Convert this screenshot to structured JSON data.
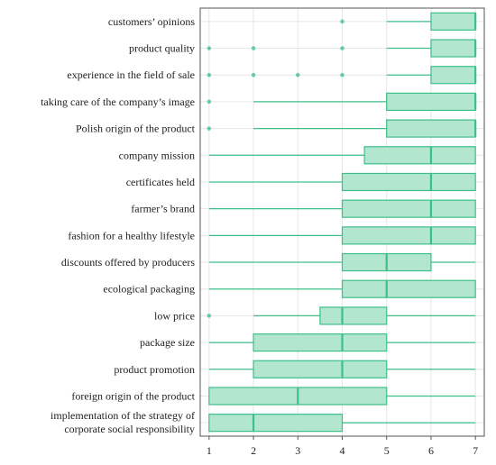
{
  "chart_data": {
    "type": "boxplot",
    "orientation": "horizontal",
    "xlim": [
      0.8,
      7.2
    ],
    "x_ticks": [
      "1",
      "2",
      "3",
      "4",
      "5",
      "6",
      "7"
    ],
    "grid": true,
    "colors": {
      "fill": "#b2e6cf",
      "stroke": "#3dbf8a",
      "grid": "#e6e6e6",
      "frame": "#555555"
    },
    "categories": [
      {
        "label": [
          "customers’ opinions"
        ],
        "min": 5,
        "q1": 6,
        "median": 7,
        "q3": 7,
        "max": 7,
        "outliers": [
          4
        ]
      },
      {
        "label": [
          "product quality"
        ],
        "min": 5,
        "q1": 6,
        "median": 7,
        "q3": 7,
        "max": 7,
        "outliers": [
          1,
          2,
          4
        ]
      },
      {
        "label": [
          "experience in the field of sale"
        ],
        "min": 5,
        "q1": 6,
        "median": 7,
        "q3": 7,
        "max": 7,
        "outliers": [
          1,
          2,
          3,
          4
        ]
      },
      {
        "label": [
          "taking care of the company’s image"
        ],
        "min": 2,
        "q1": 5,
        "median": 7,
        "q3": 7,
        "max": 7,
        "outliers": [
          1
        ]
      },
      {
        "label": [
          "Polish origin of the product"
        ],
        "min": 2,
        "q1": 5,
        "median": 7,
        "q3": 7,
        "max": 7,
        "outliers": [
          1
        ]
      },
      {
        "label": [
          "company mission"
        ],
        "min": 1,
        "q1": 4.5,
        "median": 6,
        "q3": 7,
        "max": 7,
        "outliers": []
      },
      {
        "label": [
          "certificates held"
        ],
        "min": 1,
        "q1": 4,
        "median": 6,
        "q3": 7,
        "max": 7,
        "outliers": []
      },
      {
        "label": [
          "farmer’s brand"
        ],
        "min": 1,
        "q1": 4,
        "median": 6,
        "q3": 7,
        "max": 7,
        "outliers": []
      },
      {
        "label": [
          "fashion for a healthy lifestyle"
        ],
        "min": 1,
        "q1": 4,
        "median": 6,
        "q3": 7,
        "max": 7,
        "outliers": []
      },
      {
        "label": [
          "discounts offered by producers"
        ],
        "min": 1,
        "q1": 4,
        "median": 5,
        "q3": 6,
        "max": 7,
        "outliers": []
      },
      {
        "label": [
          "ecological packaging"
        ],
        "min": 1,
        "q1": 4,
        "median": 5,
        "q3": 7,
        "max": 7,
        "outliers": []
      },
      {
        "label": [
          "low price"
        ],
        "min": 2,
        "q1": 3.5,
        "median": 4,
        "q3": 5,
        "max": 7,
        "outliers": [
          1
        ]
      },
      {
        "label": [
          "package size"
        ],
        "min": 1,
        "q1": 2,
        "median": 4,
        "q3": 5,
        "max": 7,
        "outliers": []
      },
      {
        "label": [
          "product promotion"
        ],
        "min": 1,
        "q1": 2,
        "median": 4,
        "q3": 5,
        "max": 7,
        "outliers": []
      },
      {
        "label": [
          "foreign origin of the product"
        ],
        "min": 1,
        "q1": 1,
        "median": 3,
        "q3": 5,
        "max": 7,
        "outliers": []
      },
      {
        "label": [
          "implementation of the strategy of",
          "corporate social responsibility"
        ],
        "min": 1,
        "q1": 1,
        "median": 2,
        "q3": 4,
        "max": 7,
        "outliers": []
      }
    ]
  }
}
